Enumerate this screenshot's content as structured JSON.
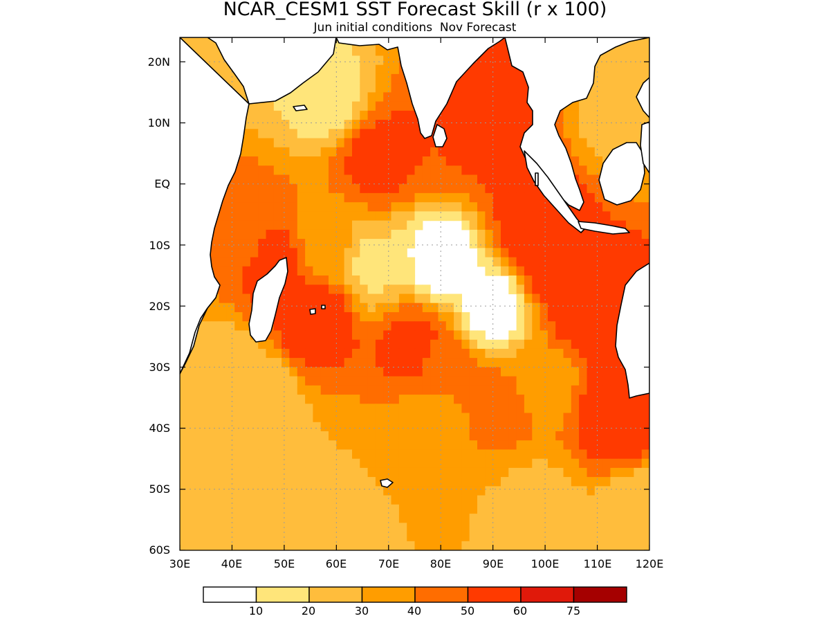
{
  "figure": {
    "title": "NCAR_CESM1 SST Forecast Skill (r x 100)",
    "subtitle": "Jun initial conditions  Nov Forecast"
  },
  "axes": {
    "lon_ticks": [
      "30E",
      "40E",
      "50E",
      "60E",
      "70E",
      "80E",
      "90E",
      "100E",
      "110E",
      "120E"
    ],
    "lat_ticks": [
      "20N",
      "10N",
      "EQ",
      "10S",
      "20S",
      "30S",
      "40S",
      "50S",
      "60S"
    ],
    "lon_values": [
      30,
      40,
      50,
      60,
      70,
      80,
      90,
      100,
      110,
      120
    ],
    "lat_values": [
      20,
      10,
      0,
      -10,
      -20,
      -30,
      -40,
      -50,
      -60
    ],
    "lon_range": [
      30,
      120
    ],
    "lat_range": [
      -60,
      24
    ],
    "grid": true
  },
  "colorbar": {
    "levels": [
      "10",
      "20",
      "30",
      "40",
      "50",
      "60",
      "75"
    ],
    "colors": [
      "#ffffff",
      "#ffe57a",
      "#ffbd3c",
      "#ff9d00",
      "#ff6d00",
      "#ff3a00",
      "#e0190a",
      "#a50000"
    ]
  },
  "chart_data": {
    "type": "heatmap",
    "title": "NCAR_CESM1 SST Forecast Skill (r x 100)",
    "subtitle": "Jun initial conditions  Nov Forecast",
    "xlabel": "",
    "ylabel": "",
    "xlim": [
      30,
      120
    ],
    "ylim": [
      -60,
      24
    ],
    "contour_levels": [
      10,
      20,
      30,
      40,
      50,
      60,
      75
    ],
    "regions": [
      {
        "lon": 56,
        "lat": -22,
        "value": 60
      },
      {
        "lon": 75,
        "lat": -27,
        "value": 55
      },
      {
        "lon": 68,
        "lat": 4,
        "value": 55
      },
      {
        "lon": 92,
        "lat": 14,
        "value": 60
      },
      {
        "lon": 89,
        "lat": 9,
        "value": 55
      },
      {
        "lon": 80,
        "lat": 6,
        "value": 50
      },
      {
        "lon": 98,
        "lat": -7,
        "value": 60
      },
      {
        "lon": 101,
        "lat": -13,
        "value": 55
      },
      {
        "lon": 108,
        "lat": -20,
        "value": 60
      },
      {
        "lon": 113,
        "lat": -38,
        "value": 60
      },
      {
        "lon": 48,
        "lat": -13,
        "value": 55
      },
      {
        "lon": 42,
        "lat": -8,
        "value": 45
      },
      {
        "lon": 58,
        "lat": -10,
        "value": 35
      },
      {
        "lon": 80,
        "lat": -30,
        "value": 45
      },
      {
        "lon": 91,
        "lat": -37,
        "value": 45
      },
      {
        "lon": 78,
        "lat": -40,
        "value": 30
      },
      {
        "lon": 100,
        "lat": -33,
        "value": 35
      },
      {
        "lon": 67,
        "lat": -13,
        "value": 18
      },
      {
        "lon": 80,
        "lat": -12,
        "value": 3
      },
      {
        "lon": 90,
        "lat": -20,
        "value": 3
      },
      {
        "lon": 69,
        "lat": -49,
        "value": 30
      },
      {
        "lon": 88,
        "lat": -53,
        "value": 30
      },
      {
        "lon": 98,
        "lat": -53,
        "value": 25
      },
      {
        "lon": 55,
        "lat": -56,
        "value": 20
      },
      {
        "lon": 38,
        "lat": -41,
        "value": 25
      },
      {
        "lon": 38,
        "lat": -31,
        "value": 25
      },
      {
        "lon": 44,
        "lat": -35,
        "value": 20
      },
      {
        "lon": 114,
        "lat": 12,
        "value": 25
      },
      {
        "lon": 118,
        "lat": 20,
        "value": 30
      },
      {
        "lon": 35,
        "lat": 22,
        "value": 25
      },
      {
        "lon": 118,
        "lat": -55,
        "value": 20
      },
      {
        "lon": 58,
        "lat": 14,
        "value": 15
      }
    ]
  }
}
